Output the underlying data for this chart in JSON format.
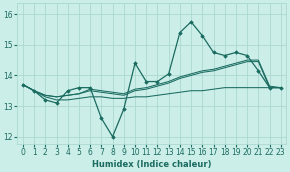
{
  "title": "",
  "xlabel": "Humidex (Indice chaleur)",
  "ylabel": "",
  "bg_color": "#cceee8",
  "grid_color": "#aad8d0",
  "line_color": "#1a6b60",
  "xlim": [
    -0.5,
    23.5
  ],
  "ylim": [
    11.75,
    16.35
  ],
  "yticks": [
    12,
    13,
    14,
    15,
    16
  ],
  "xticks": [
    0,
    1,
    2,
    3,
    4,
    5,
    6,
    7,
    8,
    9,
    10,
    11,
    12,
    13,
    14,
    15,
    16,
    17,
    18,
    19,
    20,
    21,
    22,
    23
  ],
  "series_main": {
    "x": [
      0,
      1,
      2,
      3,
      4,
      5,
      6,
      7,
      8,
      9,
      10,
      11,
      12,
      13,
      14,
      15,
      16,
      17,
      18,
      19,
      20,
      21,
      22,
      23
    ],
    "y": [
      13.7,
      13.5,
      13.2,
      13.1,
      13.5,
      13.6,
      13.6,
      12.6,
      12.0,
      12.9,
      14.4,
      13.8,
      13.8,
      14.05,
      15.4,
      15.75,
      15.3,
      14.75,
      14.65,
      14.75,
      14.65,
      14.15,
      13.6,
      13.6
    ]
  },
  "series_trend1": {
    "x": [
      0,
      1,
      2,
      3,
      4,
      5,
      6,
      7,
      8,
      9,
      10,
      11,
      12,
      13,
      14,
      15,
      16,
      17,
      18,
      19,
      20,
      21,
      22,
      23
    ],
    "y": [
      13.7,
      13.5,
      13.35,
      13.3,
      13.35,
      13.4,
      13.5,
      13.45,
      13.4,
      13.35,
      13.5,
      13.55,
      13.65,
      13.75,
      13.9,
      14.0,
      14.1,
      14.15,
      14.25,
      14.35,
      14.45,
      14.45,
      13.6,
      13.6
    ]
  },
  "series_trend2": {
    "x": [
      0,
      1,
      2,
      3,
      4,
      5,
      6,
      7,
      8,
      9,
      10,
      11,
      12,
      13,
      14,
      15,
      16,
      17,
      18,
      19,
      20,
      21,
      22,
      23
    ],
    "y": [
      13.7,
      13.5,
      13.35,
      13.3,
      13.35,
      13.4,
      13.55,
      13.5,
      13.45,
      13.4,
      13.55,
      13.6,
      13.7,
      13.8,
      13.95,
      14.05,
      14.15,
      14.2,
      14.3,
      14.4,
      14.5,
      14.5,
      13.65,
      13.6
    ]
  },
  "series_flat": {
    "x": [
      0,
      1,
      2,
      3,
      4,
      5,
      6,
      7,
      8,
      9,
      10,
      11,
      12,
      13,
      14,
      15,
      16,
      17,
      18,
      19,
      20,
      21,
      22,
      23
    ],
    "y": [
      13.7,
      13.5,
      13.3,
      13.2,
      13.2,
      13.25,
      13.3,
      13.3,
      13.25,
      13.25,
      13.3,
      13.3,
      13.35,
      13.4,
      13.45,
      13.5,
      13.5,
      13.55,
      13.6,
      13.6,
      13.6,
      13.6,
      13.6,
      13.6
    ]
  }
}
